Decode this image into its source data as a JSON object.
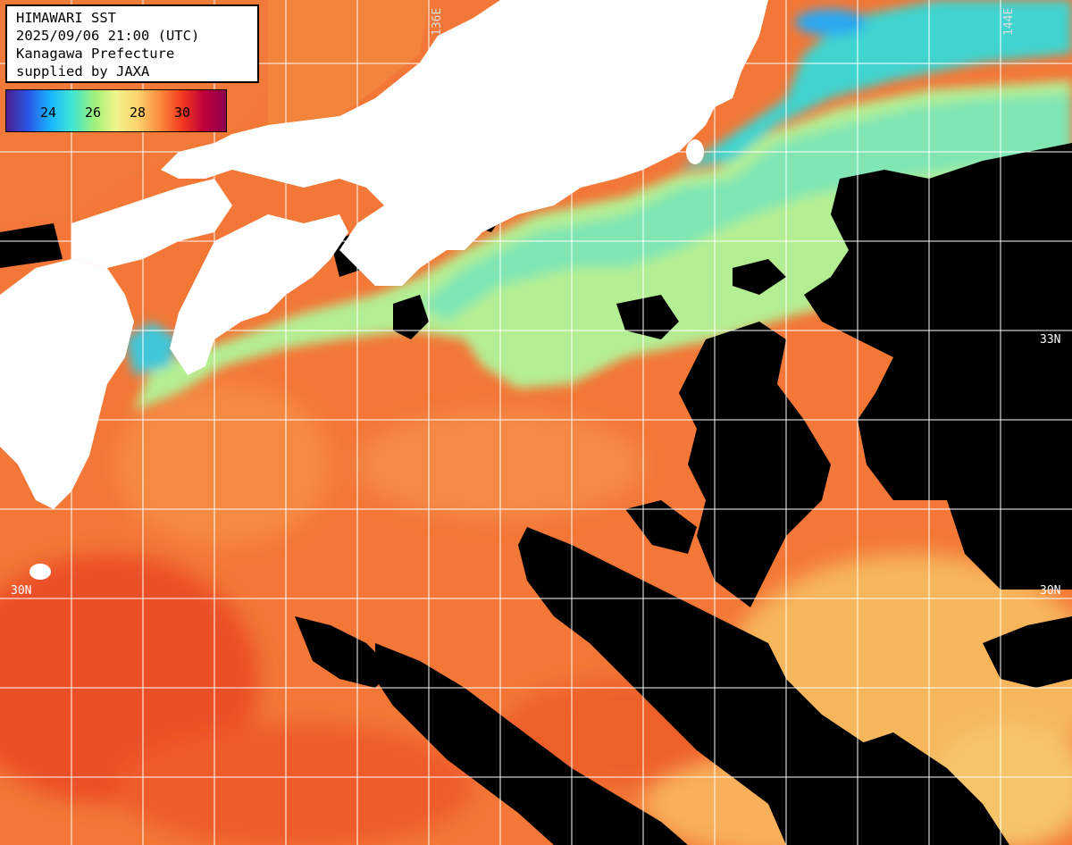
{
  "info": {
    "title": "HIMAWARI SST",
    "datetime": "2025/09/06 21:00 (UTC)",
    "region": "Kanagawa Prefecture",
    "credit": "supplied by JAXA"
  },
  "colorbar": {
    "ticks": [
      "24",
      "26",
      "28",
      "30"
    ],
    "colors": [
      "#4b1e8f",
      "#2a55e6",
      "#19b4ff",
      "#3fe6d4",
      "#9cf07a",
      "#f2f48a",
      "#fbd26a",
      "#fb8a3c",
      "#f23a1d",
      "#c0003a",
      "#8a0050"
    ]
  },
  "grid": {
    "lon_labels": [
      "136E",
      "144E"
    ],
    "lat_labels_left": [
      "30N"
    ],
    "lat_labels_right": [
      "33N",
      "30N"
    ]
  },
  "legend_colors": {
    "land": "#ffffff",
    "cloud": "#000000",
    "warm_sea": "#f47a36",
    "cool_sea": "#a8ec98",
    "cold_sea": "#3fd6c8"
  }
}
